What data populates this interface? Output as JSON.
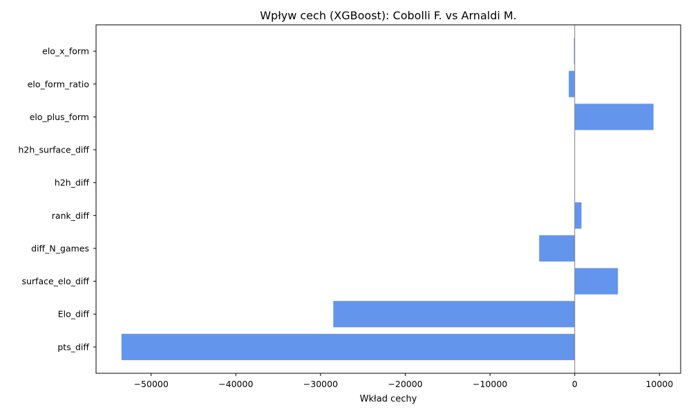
{
  "chart_data": {
    "type": "bar",
    "orientation": "horizontal",
    "title": "Wpływ cech (XGBoost): Cobolli F. vs Arnaldi M.",
    "xlabel": "Wkład cechy",
    "ylabel": "",
    "categories": [
      "pts_diff",
      "Elo_diff",
      "surface_elo_diff",
      "diff_N_games",
      "rank_diff",
      "h2h_diff",
      "h2h_surface_diff",
      "elo_plus_form",
      "elo_form_ratio",
      "elo_x_form"
    ],
    "values": [
      -53500,
      -28500,
      5100,
      -4200,
      800,
      0,
      0,
      9300,
      -700,
      -100
    ],
    "xlim": [
      -56500,
      12500
    ],
    "xticks": [
      -50000,
      -40000,
      -30000,
      -20000,
      -10000,
      0,
      10000
    ],
    "xtick_labels": [
      "−50000",
      "−40000",
      "−30000",
      "−20000",
      "−10000",
      "0",
      "10000"
    ],
    "bar_color": "#6495ed",
    "zero_line_color": "#808080",
    "grid": false,
    "legend": "none"
  }
}
